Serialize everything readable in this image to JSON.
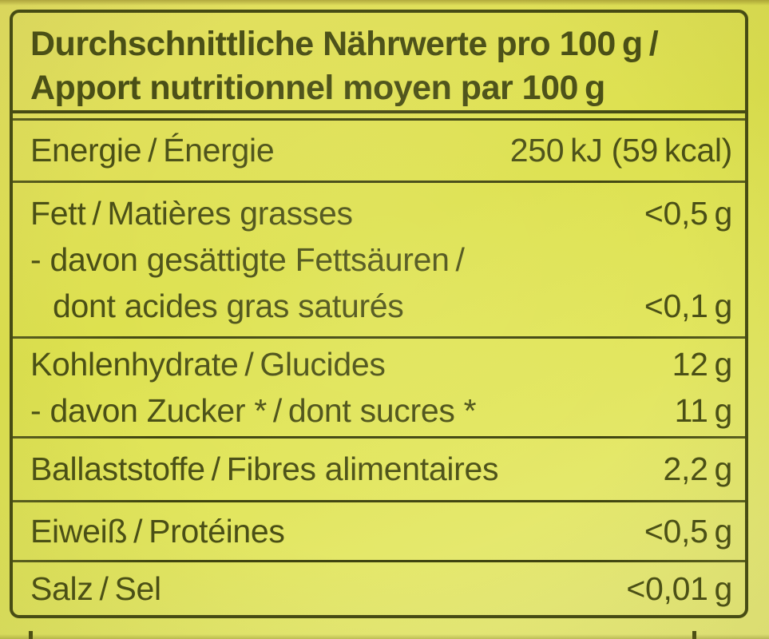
{
  "label": {
    "title": "Nutrition facts label (German / French)",
    "colors": {
      "background": "#dde14f",
      "background_light": "#e9eb7d",
      "ink": "#4a4f16",
      "border": "#454a14"
    },
    "table": {
      "header_line1": "Durchschnittliche Nährwerte pro 100 g /",
      "header_line2": "Apport nutritionnel moyen par 100 g",
      "rows": [
        {
          "label": "Energie / Énergie",
          "value": "250 kJ (59 kcal)"
        },
        {
          "label": "Fett / Matières grasses",
          "value": "<0,5 g"
        },
        {
          "label": "- davon gesättigte Fettsäuren /",
          "value": ""
        },
        {
          "label": "dont acides gras saturés",
          "value": "<0,1 g"
        },
        {
          "label": "Kohlenhydrate / Glucides",
          "value": "12 g"
        },
        {
          "label": "- davon Zucker * / dont sucres *",
          "value": "11 g"
        },
        {
          "label": "Ballaststoffe / Fibres alimentaires",
          "value": "2,2 g"
        },
        {
          "label": "Eiweiß / Protéines",
          "value": "<0,5 g"
        },
        {
          "label": "Salz / Sel",
          "value": "<0,01 g"
        }
      ]
    }
  }
}
